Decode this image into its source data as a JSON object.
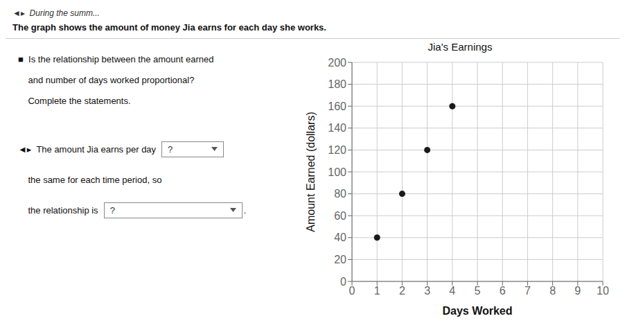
{
  "chart_data": {
    "type": "scatter",
    "title": "Jia's Earnings",
    "xlabel": "Days Worked",
    "ylabel": "Amount Earned (dollars)",
    "x": [
      1,
      2,
      3,
      4
    ],
    "values": [
      40,
      80,
      120,
      160
    ],
    "color": "#1a1a1a",
    "xlim": [
      0,
      10
    ],
    "ylim": [
      0,
      200
    ],
    "xticks": [
      0,
      1,
      2,
      3,
      4,
      5,
      6,
      7,
      8,
      9,
      10
    ],
    "yticks": [
      0,
      20,
      40,
      60,
      80,
      100,
      120,
      140,
      160,
      180,
      200
    ],
    "grid": true,
    "annotations": [
      [
        "◄▸  During the summ..."
      ],
      [
        "The graph shows the amount of money Jia earns for each day she works."
      ],
      [
        "■  Is the relationship between the amount earned"
      ],
      [
        "    and number of days worked proportional?"
      ],
      [
        "    Complete the statements."
      ],
      [
        "◄▸  The amount Jia earns per day",
        "?"
      ],
      [
        "    the same for each time period, so"
      ],
      [
        "    the relationship is",
        "?",
        "."
      ]
    ]
  }
}
